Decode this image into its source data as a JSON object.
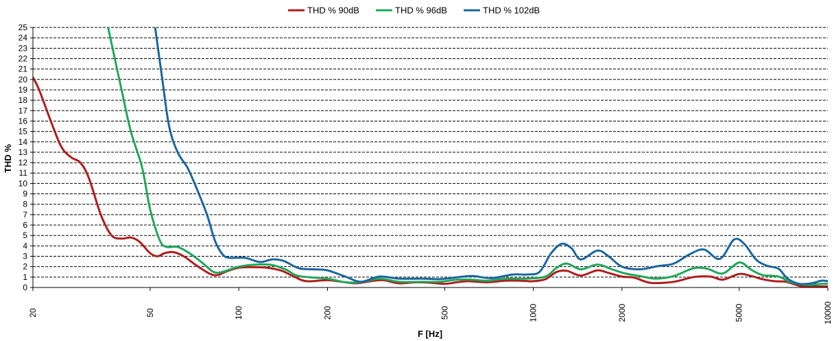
{
  "chart_data": {
    "type": "line",
    "xlabel": "F [Hz]",
    "ylabel": "THD %",
    "xscale": "log",
    "xlim": [
      20,
      10000
    ],
    "ylim": [
      0,
      25
    ],
    "xticks": [
      20,
      50,
      100,
      200,
      500,
      1000,
      2000,
      5000,
      10000
    ],
    "xtick_labels": [
      "20",
      "50",
      "100",
      "200",
      "500",
      "1000",
      "2000",
      "5000",
      "10000"
    ],
    "yticks": [
      0,
      1,
      2,
      3,
      4,
      5,
      6,
      7,
      8,
      9,
      10,
      11,
      12,
      13,
      14,
      15,
      16,
      17,
      18,
      19,
      20,
      21,
      22,
      23,
      24,
      25
    ],
    "ytick_labels": [
      "0",
      "1",
      "2",
      "3",
      "4",
      "5",
      "6",
      "7",
      "8",
      "9",
      "10",
      "11",
      "12",
      "13",
      "14",
      "15",
      "16",
      "17",
      "18",
      "19",
      "20",
      "21",
      "22",
      "23",
      "24",
      "25"
    ],
    "grid": "horizontal",
    "legend_position": "top-center",
    "series": [
      {
        "name": "THD % 90dB",
        "color": "#b01c1c",
        "points": [
          [
            20,
            20.2
          ],
          [
            21,
            19
          ],
          [
            23,
            16
          ],
          [
            25,
            13.5
          ],
          [
            27,
            12.5
          ],
          [
            29,
            12
          ],
          [
            31,
            10.5
          ],
          [
            34,
            7
          ],
          [
            37,
            5
          ],
          [
            40,
            4.7
          ],
          [
            43,
            4.8
          ],
          [
            46,
            4.4
          ],
          [
            50,
            3.3
          ],
          [
            53,
            3
          ],
          [
            56,
            3.3
          ],
          [
            60,
            3.4
          ],
          [
            65,
            3
          ],
          [
            72,
            2.1
          ],
          [
            80,
            1.3
          ],
          [
            85,
            1.2
          ],
          [
            90,
            1.5
          ],
          [
            100,
            1.9
          ],
          [
            110,
            1.95
          ],
          [
            125,
            1.9
          ],
          [
            140,
            1.6
          ],
          [
            155,
            1
          ],
          [
            170,
            0.6
          ],
          [
            200,
            0.7
          ],
          [
            230,
            0.5
          ],
          [
            250,
            0.4
          ],
          [
            280,
            0.6
          ],
          [
            310,
            0.7
          ],
          [
            350,
            0.4
          ],
          [
            400,
            0.5
          ],
          [
            450,
            0.45
          ],
          [
            500,
            0.35
          ],
          [
            550,
            0.5
          ],
          [
            600,
            0.6
          ],
          [
            700,
            0.5
          ],
          [
            800,
            0.65
          ],
          [
            900,
            0.65
          ],
          [
            1000,
            0.6
          ],
          [
            1100,
            0.8
          ],
          [
            1200,
            1.5
          ],
          [
            1300,
            1.6
          ],
          [
            1450,
            1.15
          ],
          [
            1650,
            1.65
          ],
          [
            1800,
            1.4
          ],
          [
            2000,
            1.05
          ],
          [
            2200,
            0.95
          ],
          [
            2500,
            0.45
          ],
          [
            3000,
            0.55
          ],
          [
            3500,
            1
          ],
          [
            4000,
            1.05
          ],
          [
            4400,
            0.75
          ],
          [
            5000,
            1.3
          ],
          [
            5500,
            1.1
          ],
          [
            6000,
            0.8
          ],
          [
            6600,
            0.6
          ],
          [
            7200,
            0.55
          ],
          [
            8000,
            0.15
          ],
          [
            8500,
            0.1
          ],
          [
            9000,
            0.1
          ],
          [
            10000,
            0.1
          ]
        ]
      },
      {
        "name": "THD % 96dB",
        "color": "#1ea85a",
        "points": [
          [
            36,
            25
          ],
          [
            40,
            19
          ],
          [
            43,
            15
          ],
          [
            47,
            11.5
          ],
          [
            50,
            7.5
          ],
          [
            54,
            4.5
          ],
          [
            57,
            3.9
          ],
          [
            62,
            3.9
          ],
          [
            68,
            3.3
          ],
          [
            75,
            2.4
          ],
          [
            82,
            1.5
          ],
          [
            88,
            1.5
          ],
          [
            100,
            2
          ],
          [
            115,
            2.2
          ],
          [
            130,
            2.15
          ],
          [
            145,
            1.7
          ],
          [
            160,
            1.1
          ],
          [
            200,
            0.85
          ],
          [
            230,
            0.5
          ],
          [
            260,
            0.5
          ],
          [
            300,
            0.85
          ],
          [
            350,
            0.55
          ],
          [
            420,
            0.55
          ],
          [
            480,
            0.55
          ],
          [
            550,
            0.75
          ],
          [
            620,
            0.75
          ],
          [
            700,
            0.65
          ],
          [
            800,
            0.85
          ],
          [
            950,
            0.85
          ],
          [
            1100,
            1.05
          ],
          [
            1200,
            1.9
          ],
          [
            1300,
            2.3
          ],
          [
            1450,
            1.75
          ],
          [
            1650,
            2.2
          ],
          [
            1850,
            1.75
          ],
          [
            2050,
            1.35
          ],
          [
            2300,
            1.1
          ],
          [
            2600,
            0.85
          ],
          [
            3000,
            1.1
          ],
          [
            3500,
            1.85
          ],
          [
            3900,
            1.8
          ],
          [
            4400,
            1.35
          ],
          [
            5000,
            2.4
          ],
          [
            5500,
            1.7
          ],
          [
            6000,
            1.2
          ],
          [
            6800,
            1.05
          ],
          [
            7500,
            0.5
          ],
          [
            8500,
            0.25
          ],
          [
            9500,
            0.35
          ],
          [
            10000,
            0.35
          ]
        ]
      },
      {
        "name": "THD % 102dB",
        "color": "#1a66a0",
        "points": [
          [
            52,
            25
          ],
          [
            55,
            20
          ],
          [
            58,
            15.5
          ],
          [
            62,
            13
          ],
          [
            67,
            11.5
          ],
          [
            72,
            9.5
          ],
          [
            78,
            7
          ],
          [
            83,
            4.5
          ],
          [
            88,
            3.2
          ],
          [
            93,
            2.85
          ],
          [
            105,
            2.85
          ],
          [
            118,
            2.45
          ],
          [
            130,
            2.7
          ],
          [
            142,
            2.55
          ],
          [
            160,
            1.85
          ],
          [
            180,
            1.75
          ],
          [
            200,
            1.65
          ],
          [
            230,
            1.05
          ],
          [
            260,
            0.55
          ],
          [
            300,
            1.05
          ],
          [
            350,
            0.85
          ],
          [
            420,
            0.85
          ],
          [
            480,
            0.8
          ],
          [
            540,
            0.95
          ],
          [
            620,
            1.1
          ],
          [
            720,
            0.9
          ],
          [
            850,
            1.25
          ],
          [
            950,
            1.25
          ],
          [
            1050,
            1.5
          ],
          [
            1150,
            3.3
          ],
          [
            1250,
            4.2
          ],
          [
            1350,
            3.75
          ],
          [
            1450,
            2.7
          ],
          [
            1650,
            3.55
          ],
          [
            1800,
            3
          ],
          [
            2000,
            2
          ],
          [
            2300,
            1.75
          ],
          [
            2650,
            2.05
          ],
          [
            3000,
            2.3
          ],
          [
            3400,
            3.2
          ],
          [
            3800,
            3.65
          ],
          [
            4300,
            2.75
          ],
          [
            4800,
            4.6
          ],
          [
            5200,
            4.2
          ],
          [
            5700,
            2.7
          ],
          [
            6200,
            2.1
          ],
          [
            6800,
            1.8
          ],
          [
            7300,
            0.85
          ],
          [
            8000,
            0.35
          ],
          [
            8800,
            0.4
          ],
          [
            9500,
            0.65
          ],
          [
            10000,
            0.6
          ]
        ]
      }
    ]
  }
}
